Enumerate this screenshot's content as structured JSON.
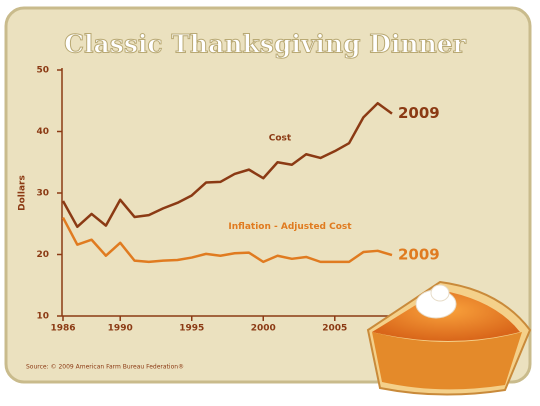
{
  "chart_data": {
    "type": "line",
    "title": "Classic Thanksgiving Dinner",
    "y_label": "Dollars",
    "source": "Source: © 2009 American Farm Bureau Federation®",
    "x": [
      1986,
      1987,
      1988,
      1989,
      1990,
      1991,
      1992,
      1993,
      1994,
      1995,
      1996,
      1997,
      1998,
      1999,
      2000,
      2001,
      2002,
      2003,
      2004,
      2005,
      2006,
      2007,
      2008,
      2009
    ],
    "xlim": [
      1986,
      2009
    ],
    "xticks": [
      1986,
      1990,
      1995,
      2000,
      2005
    ],
    "ylim": [
      10,
      50
    ],
    "yticks": [
      10,
      20,
      30,
      40,
      50
    ],
    "series": [
      {
        "name": "Cost",
        "end_label": "2009",
        "color": "#8b3a14",
        "values": [
          28.7,
          24.5,
          26.6,
          24.7,
          28.9,
          26.1,
          26.4,
          27.5,
          28.4,
          29.6,
          31.7,
          31.8,
          33.1,
          33.8,
          32.4,
          35.0,
          34.6,
          36.3,
          35.7,
          36.8,
          38.1,
          42.3,
          44.6,
          42.9
        ]
      },
      {
        "name": "Inflation - Adjusted Cost",
        "end_label": "2009",
        "color": "#e07b20",
        "values": [
          26.0,
          21.6,
          22.4,
          19.8,
          21.9,
          19.0,
          18.8,
          19.0,
          19.1,
          19.5,
          20.1,
          19.8,
          20.2,
          20.3,
          18.8,
          19.8,
          19.3,
          19.6,
          18.8,
          18.8,
          18.8,
          20.4,
          20.6,
          19.9
        ]
      }
    ]
  }
}
